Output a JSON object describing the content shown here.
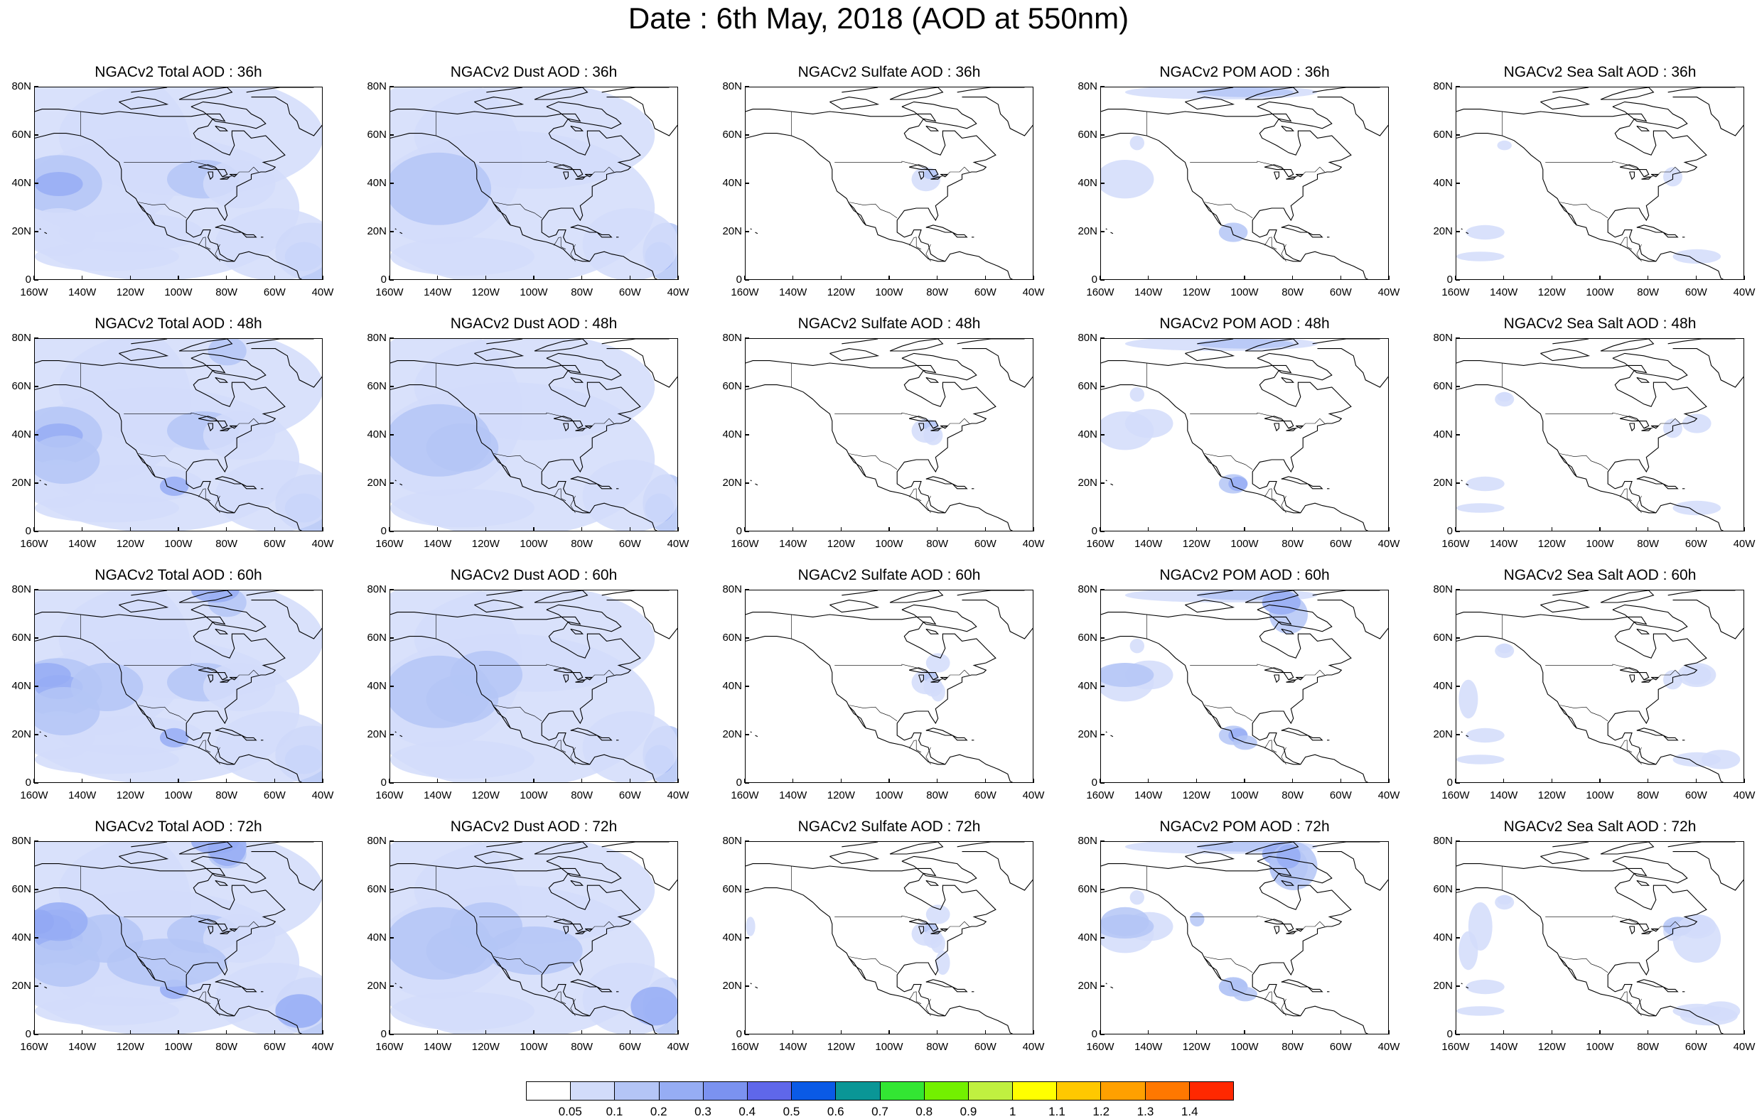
{
  "title": "Date : 6th May, 2018 (AOD at 550nm)",
  "axes": {
    "lat_ticks": [
      "80N",
      "60N",
      "40N",
      "20N",
      "0"
    ],
    "lat_values": [
      80,
      60,
      40,
      20,
      0
    ],
    "lon_ticks": [
      "160W",
      "140W",
      "120W",
      "100W",
      "80W",
      "60W",
      "40W"
    ],
    "lon_values": [
      -160,
      -140,
      -120,
      -100,
      -80,
      -60,
      -40
    ],
    "lon_range": [
      -160,
      -40
    ],
    "lat_range": [
      0,
      80
    ]
  },
  "panels": [
    {
      "title": "NGACv2 Total AOD : 36h",
      "species": "total",
      "hour": 36
    },
    {
      "title": "NGACv2 Dust AOD : 36h",
      "species": "dust",
      "hour": 36
    },
    {
      "title": "NGACv2 Sulfate AOD : 36h",
      "species": "sulfate",
      "hour": 36
    },
    {
      "title": "NGACv2 POM AOD : 36h",
      "species": "pom",
      "hour": 36
    },
    {
      "title": "NGACv2 Sea Salt AOD : 36h",
      "species": "seasalt",
      "hour": 36
    },
    {
      "title": "NGACv2 Total AOD : 48h",
      "species": "total",
      "hour": 48
    },
    {
      "title": "NGACv2 Dust AOD : 48h",
      "species": "dust",
      "hour": 48
    },
    {
      "title": "NGACv2 Sulfate AOD : 48h",
      "species": "sulfate",
      "hour": 48
    },
    {
      "title": "NGACv2 POM AOD : 48h",
      "species": "pom",
      "hour": 48
    },
    {
      "title": "NGACv2 Sea Salt AOD : 48h",
      "species": "seasalt",
      "hour": 48
    },
    {
      "title": "NGACv2 Total AOD : 60h",
      "species": "total",
      "hour": 60
    },
    {
      "title": "NGACv2 Dust AOD : 60h",
      "species": "dust",
      "hour": 60
    },
    {
      "title": "NGACv2 Sulfate AOD : 60h",
      "species": "sulfate",
      "hour": 60
    },
    {
      "title": "NGACv2 POM AOD : 60h",
      "species": "pom",
      "hour": 60
    },
    {
      "title": "NGACv2 Sea Salt AOD : 60h",
      "species": "seasalt",
      "hour": 60
    },
    {
      "title": "NGACv2 Total AOD : 72h",
      "species": "total",
      "hour": 72
    },
    {
      "title": "NGACv2 Dust AOD : 72h",
      "species": "dust",
      "hour": 72
    },
    {
      "title": "NGACv2 Sulfate AOD : 72h",
      "species": "sulfate",
      "hour": 72
    },
    {
      "title": "NGACv2 POM AOD : 72h",
      "species": "pom",
      "hour": 72
    },
    {
      "title": "NGACv2 Sea Salt  AOD : 72h",
      "species": "seasalt",
      "hour": 72
    }
  ],
  "colorbar": {
    "labels": [
      "0.05",
      "0.1",
      "0.2",
      "0.3",
      "0.4",
      "0.5",
      "0.6",
      "0.7",
      "0.8",
      "0.9",
      "1",
      "1.1",
      "1.2",
      "1.3",
      "1.4"
    ],
    "colors": [
      "#ffffff",
      "#d2dcfa",
      "#b4c5f6",
      "#96adf4",
      "#7b92f0",
      "#5f67ea",
      "#0a5ae6",
      "#0a9696",
      "#33e633",
      "#73f000",
      "#c0f040",
      "#ffff00",
      "#ffc800",
      "#ffa000",
      "#ff7800",
      "#ff2800"
    ]
  }
}
